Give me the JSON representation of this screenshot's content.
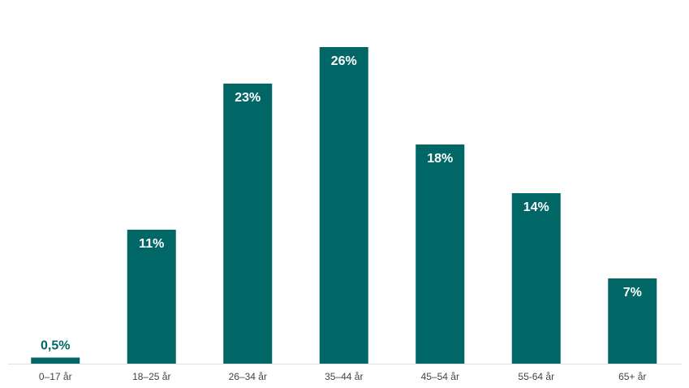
{
  "chart_data": {
    "type": "bar",
    "categories": [
      "0–17 år",
      "18–25 år",
      "26–34 år",
      "35–44 år",
      "45–54 år",
      "55-64 år",
      "65+ år"
    ],
    "values": [
      0.5,
      11,
      23,
      26,
      18,
      14,
      7
    ],
    "value_labels": [
      "0,5%",
      "11%",
      "23%",
      "26%",
      "18%",
      "14%",
      "7%"
    ],
    "color": "#006766"
  }
}
